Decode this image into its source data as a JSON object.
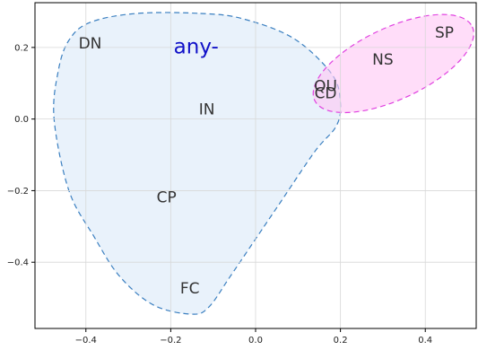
{
  "chart_data": {
    "type": "scatter",
    "title": "",
    "xlabel": "",
    "ylabel": "",
    "xlim": [
      -0.52,
      0.52
    ],
    "ylim": [
      -0.585,
      0.325
    ],
    "grid": true,
    "x_ticks": [
      -0.4,
      -0.2,
      0.0,
      0.2,
      0.4
    ],
    "x_tick_labels": [
      "−0.4",
      "−0.2",
      "0.0",
      "0.2",
      "0.4"
    ],
    "y_ticks": [
      0.2,
      0.0,
      -0.2,
      -0.4
    ],
    "y_tick_labels": [
      "0.2",
      "0.0",
      "−0.2",
      "−0.4"
    ],
    "points": [
      {
        "label": "DN",
        "x": -0.39,
        "y": 0.21
      },
      {
        "label": "IN",
        "x": -0.115,
        "y": 0.025
      },
      {
        "label": "CP",
        "x": -0.21,
        "y": -0.22
      },
      {
        "label": "FC",
        "x": -0.155,
        "y": -0.475
      },
      {
        "label": "NS",
        "x": 0.3,
        "y": 0.165
      },
      {
        "label": "SP",
        "x": 0.445,
        "y": 0.24
      },
      {
        "label": "QU",
        "x": 0.165,
        "y": 0.09
      },
      {
        "label": "CD",
        "x": 0.165,
        "y": 0.07
      }
    ],
    "regions": [
      {
        "fill": "#dbe9f8",
        "fill_opacity": 0.6,
        "stroke": "#3a7fc0",
        "polygon": [
          [
            -0.13,
            0.295
          ],
          [
            -0.03,
            0.28
          ],
          [
            0.09,
            0.225
          ],
          [
            0.18,
            0.125
          ],
          [
            0.2,
            0.045
          ],
          [
            0.19,
            -0.02
          ],
          [
            0.14,
            -0.09
          ],
          [
            0.06,
            -0.23
          ],
          [
            0.02,
            -0.3
          ],
          [
            -0.06,
            -0.44
          ],
          [
            -0.11,
            -0.525
          ],
          [
            -0.15,
            -0.545
          ],
          [
            -0.24,
            -0.52
          ],
          [
            -0.32,
            -0.44
          ],
          [
            -0.38,
            -0.33
          ],
          [
            -0.44,
            -0.2
          ],
          [
            -0.475,
            0.0
          ],
          [
            -0.465,
            0.135
          ],
          [
            -0.44,
            0.22
          ],
          [
            -0.39,
            0.27
          ],
          [
            -0.28,
            0.295
          ]
        ]
      },
      {
        "fill": "#ffc6f5",
        "fill_opacity": 0.6,
        "stroke": "#e040e0",
        "ellipse": {
          "cx": 0.325,
          "cy": 0.155,
          "rx": 0.205,
          "ry": 0.1,
          "rotate_deg": -25
        }
      }
    ],
    "annotations": [
      {
        "text": "any-",
        "x": -0.14,
        "y": 0.2
      }
    ]
  }
}
